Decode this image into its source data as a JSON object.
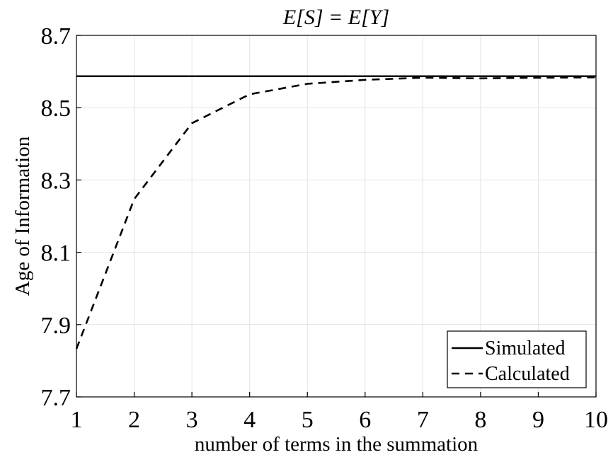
{
  "chart_data": {
    "type": "line",
    "title": "E[S] = E[Y]",
    "xlabel": "number of terms in the summation",
    "ylabel": "Age of Information",
    "xlim": [
      1,
      10
    ],
    "ylim": [
      7.7,
      8.7
    ],
    "xticks": [
      "1",
      "2",
      "3",
      "4",
      "5",
      "6",
      "7",
      "8",
      "9",
      "10"
    ],
    "yticks": [
      "7.7",
      "7.9",
      "8.1",
      "8.3",
      "8.5",
      "8.7"
    ],
    "grid": true,
    "legend_position": "bottom-right",
    "x": [
      1,
      2,
      3,
      4,
      5,
      6,
      7,
      8,
      9,
      10
    ],
    "series": [
      {
        "name": "Simulated",
        "style": "solid",
        "color": "#000000",
        "values": [
          8.587,
          8.587,
          8.587,
          8.587,
          8.587,
          8.587,
          8.587,
          8.587,
          8.587,
          8.587
        ]
      },
      {
        "name": "Calculated",
        "style": "dashed",
        "color": "#000000",
        "values": [
          7.833,
          8.247,
          8.457,
          8.537,
          8.566,
          8.577,
          8.583,
          8.581,
          8.583,
          8.584
        ]
      }
    ]
  }
}
